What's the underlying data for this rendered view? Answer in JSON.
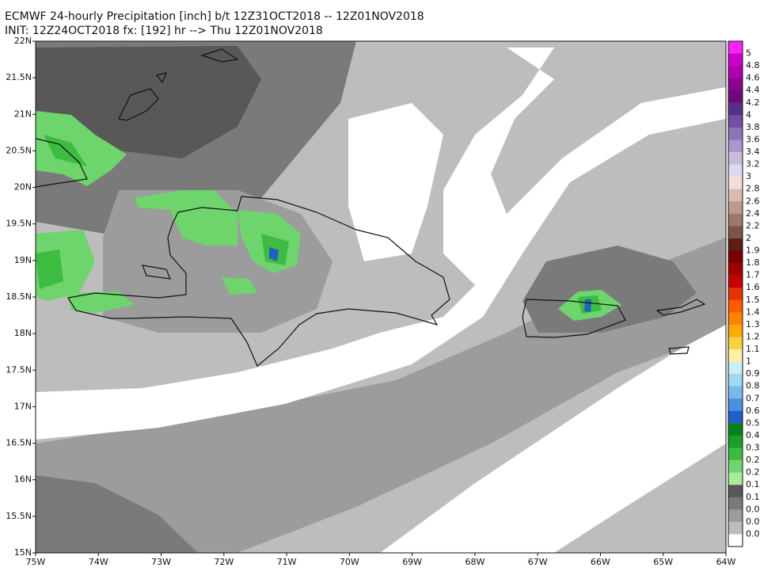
{
  "header": {
    "line1": "ECMWF 24-hourly Precipitation [inch] b/t 12Z31OCT2018 -- 12Z01NOV2018",
    "line2": "INIT: 12Z24OCT2018 fx: [192] hr --> Thu 12Z01NOV2018"
  },
  "map": {
    "lat_labels": [
      "22N",
      "21.5N",
      "21N",
      "20.5N",
      "20N",
      "19.5N",
      "19N",
      "18.5N",
      "18N",
      "17.5N",
      "17N",
      "16.5N",
      "16N",
      "15.5N",
      "15N"
    ],
    "lon_labels": [
      "75W",
      "74W",
      "73W",
      "72W",
      "71W",
      "70W",
      "69W",
      "68W",
      "67W",
      "66W",
      "65W",
      "64W"
    ]
  },
  "colorbar": {
    "labels": [
      "5",
      "4.8",
      "4.6",
      "4.4",
      "4.2",
      "4",
      "3.8",
      "3.6",
      "3.4",
      "3.2",
      "3",
      "2.8",
      "2.6",
      "2.4",
      "2.2",
      "2",
      "1.9",
      "1.8",
      "1.7",
      "1.6",
      "1.5",
      "1.4",
      "1.3",
      "1.2",
      "1.1",
      "1",
      "0.9",
      "0.8",
      "0.7",
      "0.6",
      "0.5",
      "0.4",
      "0.3",
      "0.2",
      "0.2",
      "0.1",
      "0.1",
      "0.0",
      "0.0",
      "0.0"
    ],
    "colors": [
      "#ff20ff",
      "#cc00cc",
      "#b000b0",
      "#900090",
      "#6a0a7a",
      "#5a2f86",
      "#7050a0",
      "#8c74b8",
      "#a898cc",
      "#c6bcdd",
      "#e0d8ea",
      "#f0e0d8",
      "#d8bcb0",
      "#bc9a8c",
      "#9e7868",
      "#7c5448",
      "#5c1e16",
      "#780000",
      "#a00000",
      "#c80000",
      "#e83000",
      "#ff5a00",
      "#ff8200",
      "#ffaa00",
      "#ffd040",
      "#fff0a0",
      "#c8f0f8",
      "#a0d8f0",
      "#78b8ec",
      "#4a90e0",
      "#2060c8",
      "#0a8020",
      "#18a028",
      "#3cbc40",
      "#70d46c",
      "#a8ec9c",
      "#585858",
      "#7a7a7a",
      "#9c9c9c",
      "#bdbdbd",
      "#ffffff"
    ]
  }
}
